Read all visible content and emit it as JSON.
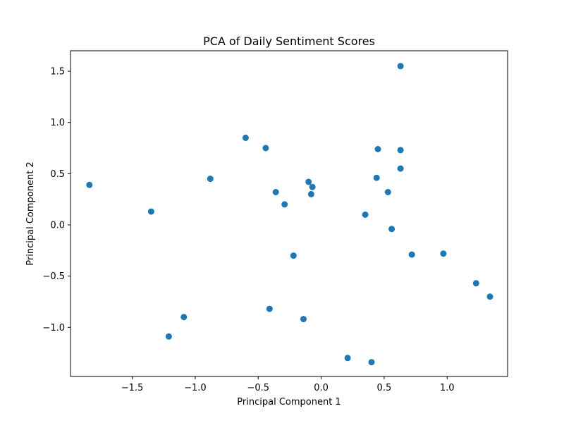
{
  "chart_data": {
    "type": "scatter",
    "title": "PCA of Daily Sentiment Scores",
    "xlabel": "Principal Component 1",
    "ylabel": "Principal Component 2",
    "xlim": [
      -1.99,
      1.48
    ],
    "ylim": [
      -1.48,
      1.7
    ],
    "xticks": [
      -1.5,
      -1.0,
      -0.5,
      0.0,
      0.5,
      1.0
    ],
    "xtick_labels": [
      "−1.5",
      "−1.0",
      "−0.5",
      "0.0",
      "0.5",
      "1.0"
    ],
    "yticks": [
      -1.0,
      -0.5,
      0.0,
      0.5,
      1.0,
      1.5
    ],
    "ytick_labels": [
      "−1.0",
      "−0.5",
      "0.0",
      "0.5",
      "1.0",
      "1.5"
    ],
    "grid": false,
    "marker_color": "#1f77b4",
    "points": [
      {
        "x": 0.63,
        "y": 1.55
      },
      {
        "x": -0.6,
        "y": 0.85
      },
      {
        "x": -0.44,
        "y": 0.75
      },
      {
        "x": 0.45,
        "y": 0.74
      },
      {
        "x": 0.63,
        "y": 0.73
      },
      {
        "x": 0.63,
        "y": 0.55
      },
      {
        "x": -0.88,
        "y": 0.45
      },
      {
        "x": 0.44,
        "y": 0.46
      },
      {
        "x": -0.1,
        "y": 0.42
      },
      {
        "x": -0.07,
        "y": 0.37
      },
      {
        "x": -1.84,
        "y": 0.39
      },
      {
        "x": -0.36,
        "y": 0.32
      },
      {
        "x": 0.53,
        "y": 0.32
      },
      {
        "x": -0.08,
        "y": 0.3
      },
      {
        "x": -0.29,
        "y": 0.2
      },
      {
        "x": -1.35,
        "y": 0.13
      },
      {
        "x": 0.35,
        "y": 0.1
      },
      {
        "x": 0.56,
        "y": -0.04
      },
      {
        "x": -0.22,
        "y": -0.3
      },
      {
        "x": 0.72,
        "y": -0.29
      },
      {
        "x": 0.97,
        "y": -0.28
      },
      {
        "x": 1.23,
        "y": -0.57
      },
      {
        "x": 1.34,
        "y": -0.7
      },
      {
        "x": -0.41,
        "y": -0.82
      },
      {
        "x": -0.14,
        "y": -0.92
      },
      {
        "x": -1.09,
        "y": -0.9
      },
      {
        "x": -1.21,
        "y": -1.09
      },
      {
        "x": 0.21,
        "y": -1.3
      },
      {
        "x": 0.4,
        "y": -1.34
      }
    ]
  }
}
